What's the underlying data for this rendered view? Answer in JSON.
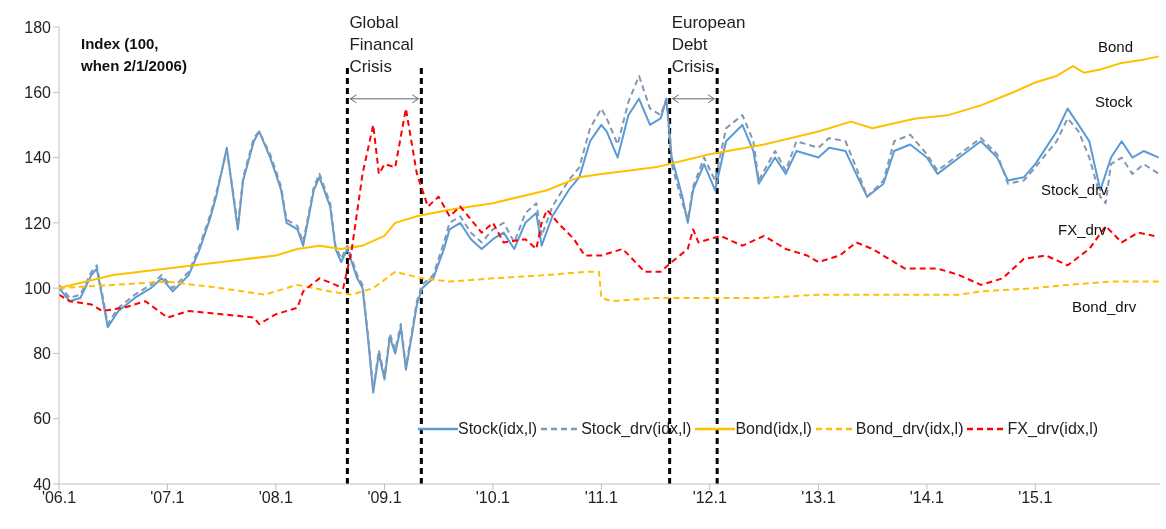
{
  "chart_data": {
    "type": "line",
    "ylabel": "Index (100, when 2/1/2006)",
    "xlim": [
      "2006-01-01",
      "2016-02-25"
    ],
    "xticks": [
      {
        "value": "2006-01",
        "label": "'06.1"
      },
      {
        "value": "2007-01",
        "label": "'07.1"
      },
      {
        "value": "2008-01",
        "label": "'08.1"
      },
      {
        "value": "2009-01",
        "label": "'09.1"
      },
      {
        "value": "2010-01",
        "label": "'10.1"
      },
      {
        "value": "2011-01",
        "label": "'11.1"
      },
      {
        "value": "2012-01",
        "label": "'12.1"
      },
      {
        "value": "2013-01",
        "label": "'13.1"
      },
      {
        "value": "2014-01",
        "label": "'14.1"
      },
      {
        "value": "2015-01",
        "label": "'15.1"
      }
    ],
    "ylim": [
      40,
      180
    ],
    "yticks": [
      40,
      60,
      80,
      100,
      120,
      140,
      160,
      180
    ],
    "grid": false,
    "legend": "bottom",
    "marker": "none",
    "series": [
      {
        "name": "Stock(idx,l)",
        "color": "#5b9bd5",
        "line_style": "solid",
        "x": [
          "2006-01-01",
          "2006-02-06",
          "2006-03-14",
          "2006-04-20",
          "2006-05-08",
          "2006-05-27",
          "2006-06-14",
          "2006-07-20",
          "2006-09-13",
          "2006-11-06",
          "2006-12-13",
          "2007-01-19",
          "2007-03-14",
          "2007-04-20",
          "2007-05-27",
          "2007-06-14",
          "2007-07-20",
          "2007-08-08",
          "2007-08-26",
          "2007-09-13",
          "2007-10-19",
          "2007-11-06",
          "2007-12-13",
          "2008-01-01",
          "2008-01-19",
          "2008-02-06",
          "2008-03-14",
          "2008-04-02",
          "2008-05-08",
          "2008-05-27",
          "2008-07-02",
          "2008-07-20",
          "2008-08-08",
          "2008-08-29",
          "2008-10-01",
          "2008-10-19",
          "2008-11-06",
          "2008-11-24",
          "2008-12-13",
          "2009-01-01",
          "2009-01-19",
          "2009-02-06",
          "2009-02-25",
          "2009-03-14",
          "2009-04-02",
          "2009-04-20",
          "2009-05-08",
          "2009-06-14",
          "2009-07-20",
          "2009-08-08",
          "2009-09-13",
          "2009-10-19",
          "2009-11-24",
          "2010-01-01",
          "2010-02-06",
          "2010-03-14",
          "2010-04-20",
          "2010-05-27",
          "2010-06-14",
          "2010-07-20",
          "2010-09-13",
          "2010-10-19",
          "2010-11-24",
          "2011-01-01",
          "2011-01-19",
          "2011-02-25",
          "2011-04-02",
          "2011-05-08",
          "2011-06-14",
          "2011-07-20",
          "2011-08-08",
          "2011-08-26",
          "2011-10-01",
          "2011-10-19",
          "2011-11-06",
          "2011-12-13",
          "2012-01-19",
          "2012-02-25",
          "2012-04-20",
          "2012-05-27",
          "2012-06-14",
          "2012-08-08",
          "2012-09-13",
          "2012-10-19",
          "2013-01-01",
          "2013-02-06",
          "2013-04-02",
          "2013-05-08",
          "2013-06-14",
          "2013-08-08",
          "2013-09-13",
          "2013-11-06",
          "2014-01-01",
          "2014-02-06",
          "2014-04-20",
          "2014-07-02",
          "2014-08-26",
          "2014-10-01",
          "2014-11-24",
          "2015-01-01",
          "2015-03-14",
          "2015-04-20",
          "2015-05-27",
          "2015-07-02",
          "2015-08-08",
          "2015-09-13",
          "2015-10-19",
          "2015-11-24",
          "2016-01-01",
          "2016-02-21"
        ],
        "values": [
          100,
          96,
          97,
          104,
          106,
          97,
          88,
          93,
          97,
          100,
          103,
          99,
          104,
          112,
          122,
          128,
          143,
          130,
          118,
          133,
          145,
          148,
          140,
          135,
          130,
          120,
          118,
          113,
          130,
          134,
          125,
          112,
          108,
          112,
          103,
          100,
          85,
          68,
          80,
          72,
          85,
          80,
          88,
          75,
          85,
          95,
          100,
          103,
          112,
          118,
          120,
          115,
          112,
          115,
          117,
          112,
          120,
          123,
          113,
          122,
          130,
          134,
          145,
          150,
          148,
          140,
          153,
          158,
          150,
          152,
          158,
          140,
          128,
          120,
          130,
          138,
          130,
          145,
          150,
          142,
          132,
          140,
          135,
          142,
          140,
          143,
          142,
          135,
          128,
          132,
          142,
          144,
          140,
          135,
          140,
          145,
          140,
          133,
          134,
          138,
          148,
          155,
          150,
          145,
          130,
          140,
          145,
          140,
          142,
          140
        ]
      },
      {
        "name": "Stock_drv(idx,l)",
        "color": "#8497b0",
        "line_style": "dashed",
        "x": [
          "2006-01-01",
          "2006-02-06",
          "2006-03-14",
          "2006-04-20",
          "2006-05-08",
          "2006-05-27",
          "2006-06-14",
          "2006-07-20",
          "2006-09-13",
          "2006-11-06",
          "2006-12-13",
          "2007-01-19",
          "2007-03-14",
          "2007-04-20",
          "2007-05-27",
          "2007-06-14",
          "2007-07-20",
          "2007-08-08",
          "2007-08-26",
          "2007-09-13",
          "2007-10-19",
          "2007-11-06",
          "2007-12-13",
          "2008-01-01",
          "2008-01-19",
          "2008-02-06",
          "2008-03-14",
          "2008-04-02",
          "2008-05-08",
          "2008-05-27",
          "2008-07-02",
          "2008-07-20",
          "2008-08-08",
          "2008-08-29",
          "2008-10-01",
          "2008-10-19",
          "2008-11-06",
          "2008-11-24",
          "2008-12-13",
          "2009-01-01",
          "2009-01-19",
          "2009-02-06",
          "2009-02-25",
          "2009-03-14",
          "2009-04-02",
          "2009-04-20",
          "2009-05-08",
          "2009-06-14",
          "2009-07-20",
          "2009-08-08",
          "2009-09-13",
          "2009-10-19",
          "2009-11-24",
          "2010-01-01",
          "2010-02-06",
          "2010-03-14",
          "2010-04-20",
          "2010-05-27",
          "2010-06-14",
          "2010-07-20",
          "2010-09-13",
          "2010-10-19",
          "2010-11-24",
          "2011-01-01",
          "2011-01-19",
          "2011-02-25",
          "2011-04-02",
          "2011-05-08",
          "2011-06-14",
          "2011-07-20",
          "2011-08-08",
          "2011-08-26",
          "2011-10-01",
          "2011-10-19",
          "2011-11-06",
          "2011-12-13",
          "2012-01-19",
          "2012-02-25",
          "2012-04-20",
          "2012-05-27",
          "2012-06-14",
          "2012-08-08",
          "2012-09-13",
          "2012-10-19",
          "2013-01-01",
          "2013-02-06",
          "2013-04-02",
          "2013-05-08",
          "2013-06-14",
          "2013-08-08",
          "2013-09-13",
          "2013-11-06",
          "2014-01-01",
          "2014-02-06",
          "2014-04-20",
          "2014-07-02",
          "2014-08-26",
          "2014-10-01",
          "2014-11-24",
          "2015-01-01",
          "2015-03-14",
          "2015-04-20",
          "2015-05-27",
          "2015-07-02",
          "2015-08-08",
          "2015-08-26",
          "2015-09-13",
          "2015-10-19",
          "2015-11-24",
          "2016-01-01",
          "2016-02-21"
        ],
        "values": [
          101,
          97,
          98,
          105,
          107,
          98,
          89,
          94,
          98,
          101,
          104,
          100,
          105,
          113,
          123,
          129,
          142,
          131,
          119,
          134,
          146,
          148,
          141,
          136,
          131,
          121,
          119,
          114,
          131,
          135,
          126,
          113,
          109,
          113,
          104,
          101,
          86,
          69,
          81,
          73,
          86,
          81,
          89,
          76,
          86,
          96,
          101,
          104,
          114,
          120,
          122,
          117,
          114,
          118,
          120,
          114,
          123,
          126,
          116,
          125,
          133,
          137,
          149,
          155,
          152,
          144,
          157,
          165,
          155,
          153,
          158,
          138,
          126,
          121,
          131,
          140,
          133,
          149,
          153,
          145,
          133,
          142,
          136,
          145,
          143,
          146,
          145,
          137,
          128,
          133,
          145,
          147,
          141,
          136,
          141,
          146,
          141,
          132,
          133,
          137,
          145,
          152,
          148,
          140,
          128,
          126,
          138,
          140,
          135,
          138,
          135
        ]
      },
      {
        "name": "Bond(idx,l)",
        "color": "#ffc000",
        "line_style": "solid",
        "x": [
          "2006-01-01",
          "2006-07-02",
          "2007-01-01",
          "2007-07-02",
          "2008-01-01",
          "2008-03-14",
          "2008-05-27",
          "2008-08-08",
          "2008-10-19",
          "2009-01-01",
          "2009-02-06",
          "2009-04-20",
          "2009-08-08",
          "2010-01-01",
          "2010-07-02",
          "2010-10-19",
          "2011-01-01",
          "2011-07-02",
          "2012-01-01",
          "2012-07-02",
          "2013-01-01",
          "2013-04-20",
          "2013-07-02",
          "2013-11-24",
          "2014-03-14",
          "2014-07-02",
          "2014-10-19",
          "2015-01-01",
          "2015-03-14",
          "2015-05-08",
          "2015-06-14",
          "2015-08-08",
          "2015-10-19",
          "2016-01-01",
          "2016-02-21"
        ],
        "values": [
          100,
          104,
          106,
          108,
          110,
          112,
          113,
          112,
          113,
          116,
          120,
          122,
          124,
          126,
          130,
          134,
          135,
          137,
          141,
          144,
          148,
          151,
          149,
          152,
          153,
          156,
          160,
          163,
          165,
          168,
          166,
          167,
          169,
          170,
          171
        ]
      },
      {
        "name": "Bond_drv(idx,l)",
        "color": "#ffc000",
        "line_style": "dashed",
        "x": [
          "2006-01-01",
          "2006-07-02",
          "2007-01-01",
          "2007-07-02",
          "2007-11-24",
          "2008-03-14",
          "2008-07-02",
          "2008-09-13",
          "2008-11-24",
          "2009-02-06",
          "2009-05-08",
          "2009-08-08",
          "2010-01-01",
          "2010-07-02",
          "2010-11-06",
          "2010-12-24",
          "2011-01-01",
          "2011-02-06",
          "2011-07-02",
          "2012-01-01",
          "2012-07-02",
          "2013-01-01",
          "2013-07-02",
          "2014-01-01",
          "2014-04-20",
          "2014-07-02",
          "2015-01-01",
          "2015-04-20",
          "2015-09-13",
          "2016-02-21"
        ],
        "values": [
          100,
          101,
          102,
          100,
          98,
          101,
          99,
          98,
          100,
          105,
          103,
          102,
          103,
          104,
          105,
          105,
          97,
          96,
          97,
          97,
          97,
          98,
          98,
          98,
          98,
          99,
          100,
          101,
          102,
          102
        ]
      },
      {
        "name": "FX_drv(idx,l)",
        "color": "#ff0000",
        "line_style": "dashed",
        "x": [
          "2006-01-01",
          "2006-02-06",
          "2006-04-20",
          "2006-05-27",
          "2006-08-08",
          "2006-10-19",
          "2007-01-01",
          "2007-03-14",
          "2007-07-02",
          "2007-10-19",
          "2007-11-06",
          "2008-01-01",
          "2008-03-14",
          "2008-04-02",
          "2008-05-27",
          "2008-07-20",
          "2008-08-15",
          "2008-09-13",
          "2008-10-19",
          "2008-11-24",
          "2008-12-13",
          "2009-01-01",
          "2009-02-06",
          "2009-03-14",
          "2009-04-20",
          "2009-05-27",
          "2009-07-02",
          "2009-08-08",
          "2009-09-13",
          "2009-11-24",
          "2010-01-01",
          "2010-02-06",
          "2010-04-20",
          "2010-05-27",
          "2010-06-14",
          "2010-07-02",
          "2010-08-08",
          "2010-10-01",
          "2010-11-06",
          "2011-01-01",
          "2011-03-14",
          "2011-05-27",
          "2011-07-20",
          "2011-08-26",
          "2011-10-19",
          "2011-11-06",
          "2011-11-24",
          "2012-02-06",
          "2012-04-20",
          "2012-07-02",
          "2012-09-13",
          "2012-11-24",
          "2013-01-01",
          "2013-03-14",
          "2013-05-08",
          "2013-07-02",
          "2013-10-19",
          "2014-02-06",
          "2014-04-20",
          "2014-07-02",
          "2014-09-13",
          "2014-11-24",
          "2015-02-06",
          "2015-04-20",
          "2015-07-02",
          "2015-08-26",
          "2015-10-19",
          "2015-12-13",
          "2016-02-06"
        ],
        "values": [
          98,
          96,
          95,
          93,
          94,
          96,
          91,
          93,
          92,
          91,
          89,
          92,
          94,
          99,
          103,
          101,
          100,
          112,
          135,
          150,
          135,
          138,
          137,
          155,
          135,
          125,
          128,
          122,
          125,
          117,
          120,
          114,
          115,
          112,
          120,
          124,
          120,
          115,
          110,
          110,
          112,
          105,
          105,
          108,
          112,
          118,
          114,
          116,
          113,
          116,
          112,
          110,
          108,
          110,
          114,
          112,
          106,
          106,
          104,
          101,
          103,
          109,
          110,
          107,
          112,
          119,
          114,
          117,
          116
        ]
      }
    ],
    "ref_lines": [
      {
        "axis": "x",
        "value": "2008-08-29",
        "label": "Global Financal Crisis",
        "color": "#000000",
        "line_style": "dashed"
      },
      {
        "axis": "x",
        "value": "2009-05-05",
        "label": null,
        "color": "#000000",
        "line_style": "dashed"
      },
      {
        "axis": "x",
        "value": "2011-08-19",
        "label": "European Debt Crisis",
        "color": "#000000",
        "line_style": "dashed"
      },
      {
        "axis": "x",
        "value": "2012-01-26",
        "label": null,
        "color": "#000000",
        "line_style": "dashed"
      }
    ],
    "annotations": [
      "Bond",
      "Stock",
      "Stock_drv",
      "FX_drv",
      "Bond_drv"
    ]
  }
}
